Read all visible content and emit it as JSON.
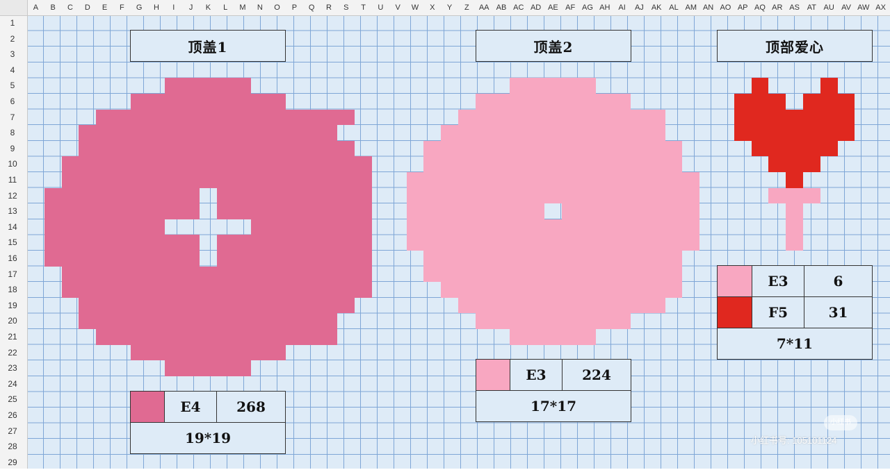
{
  "columns": [
    "A",
    "B",
    "C",
    "D",
    "E",
    "F",
    "G",
    "H",
    "I",
    "J",
    "K",
    "L",
    "M",
    "N",
    "O",
    "P",
    "Q",
    "R",
    "S",
    "T",
    "U",
    "V",
    "W",
    "X",
    "Y",
    "Z",
    "AA",
    "AB",
    "AC",
    "AD",
    "AE",
    "AF",
    "AG",
    "AH",
    "AI",
    "AJ",
    "AK",
    "AL",
    "AM",
    "AN",
    "AO",
    "AP",
    "AQ",
    "AR",
    "AS",
    "AT",
    "AU",
    "AV",
    "AW",
    "AX"
  ],
  "rows": [
    "1",
    "2",
    "3",
    "4",
    "5",
    "6",
    "7",
    "8",
    "9",
    "10",
    "11",
    "12",
    "13",
    "14",
    "15",
    "16",
    "17",
    "18",
    "19",
    "20",
    "21",
    "22",
    "23",
    "24",
    "25",
    "26",
    "27",
    "28",
    "29"
  ],
  "colors": {
    "grid_fill": "#deebf7",
    "grid_line": "#7ea6d6",
    "cap1_pink": "#e06a92",
    "cap2_pink": "#f8a7c1",
    "heart_red": "#e0281f",
    "heart_stem_pink": "#f8a7c1"
  },
  "patterns": [
    {
      "id": "cap1",
      "title": "顶盖1",
      "color_key": "cap1_pink",
      "size_label": "19*19",
      "legend": [
        {
          "color_key": "cap1_pink",
          "code": "E4",
          "count": "268"
        }
      ]
    },
    {
      "id": "cap2",
      "title": "顶盖2",
      "color_key": "cap2_pink",
      "size_label": "17*17",
      "legend": [
        {
          "color_key": "cap2_pink",
          "code": "E3",
          "count": "224"
        }
      ]
    },
    {
      "id": "heart",
      "title": "顶部爱心",
      "color_key": "heart_red",
      "size_label": "7*11",
      "legend": [
        {
          "color_key": "cap2_pink",
          "code": "E3",
          "count": "6"
        },
        {
          "color_key": "heart_red",
          "code": "F5",
          "count": "31"
        }
      ]
    }
  ],
  "watermark": {
    "badge": "小红书",
    "text": "小红书号: 105101124"
  }
}
